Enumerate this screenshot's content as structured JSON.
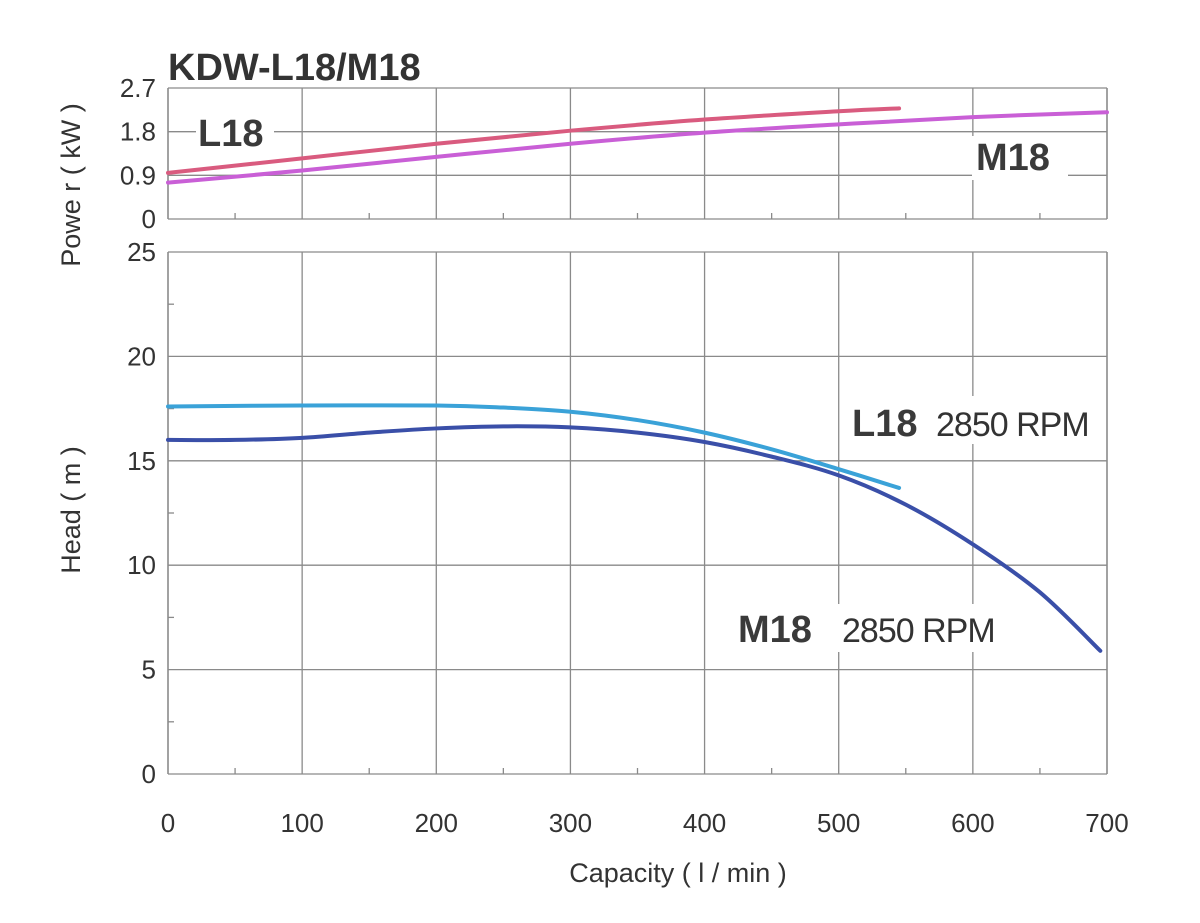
{
  "chart_data": [
    {
      "type": "line",
      "title": "KDW-L18/M18",
      "ylabel": "Powe r ( kW )",
      "xlabel": "",
      "xlim": [
        0,
        700
      ],
      "ylim": [
        0,
        2.7
      ],
      "y_ticks": [
        "0",
        "0.9",
        "1.8",
        "2.7"
      ],
      "grid": true,
      "series": [
        {
          "name": "L18",
          "color": "#d95b7f",
          "x": [
            0,
            100,
            200,
            300,
            400,
            500,
            545
          ],
          "y": [
            0.95,
            1.25,
            1.55,
            1.82,
            2.05,
            2.22,
            2.28
          ]
        },
        {
          "name": "M18",
          "color": "#c95fd6",
          "x": [
            0,
            100,
            200,
            300,
            400,
            500,
            600,
            700
          ],
          "y": [
            0.75,
            1.0,
            1.28,
            1.55,
            1.78,
            1.95,
            2.1,
            2.2
          ]
        }
      ]
    },
    {
      "type": "line",
      "title": "",
      "ylabel": "Head ( m )",
      "xlabel": "Capacity ( l / min )",
      "xlim": [
        0,
        700
      ],
      "ylim": [
        0,
        25
      ],
      "x_ticks": [
        "0",
        "100",
        "200",
        "300",
        "400",
        "500",
        "600",
        "700"
      ],
      "y_ticks": [
        "0",
        "5",
        "10",
        "15",
        "20",
        "25"
      ],
      "grid": true,
      "series": [
        {
          "name": "L18",
          "rpm_label": "2850 RPM",
          "color": "#3aa2d8",
          "x": [
            0,
            100,
            200,
            250,
            300,
            350,
            400,
            450,
            500,
            545
          ],
          "y": [
            17.6,
            17.65,
            17.65,
            17.55,
            17.35,
            16.95,
            16.35,
            15.55,
            14.6,
            13.7
          ]
        },
        {
          "name": "M18",
          "rpm_label": "2850 RPM",
          "color": "#3a4fa8",
          "x": [
            0,
            50,
            100,
            150,
            200,
            250,
            300,
            350,
            400,
            450,
            500,
            550,
            600,
            650,
            695
          ],
          "y": [
            16.0,
            16.0,
            16.1,
            16.35,
            16.55,
            16.65,
            16.6,
            16.35,
            15.9,
            15.2,
            14.3,
            12.9,
            11.0,
            8.7,
            5.9
          ]
        }
      ]
    }
  ]
}
